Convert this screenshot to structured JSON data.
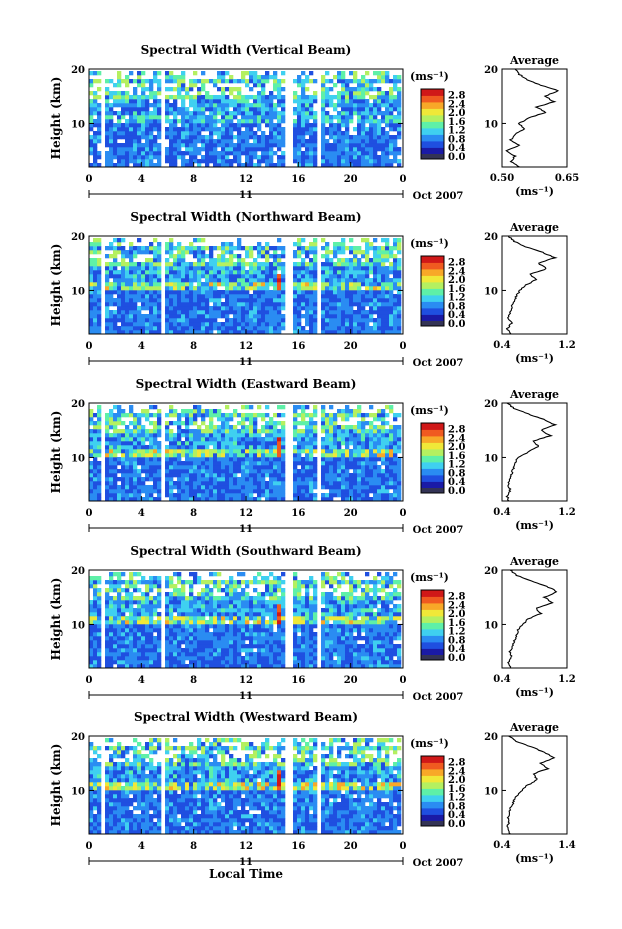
{
  "figure": {
    "xlabel": "Local Time",
    "date_label": "Oct 2007",
    "day_label": "11",
    "colorbar_unit": "(ms⁻¹)",
    "colorbar_ticks": [
      "0.0",
      "0.4",
      "0.8",
      "1.2",
      "1.6",
      "2.0",
      "2.4",
      "2.8"
    ],
    "colors": {
      "cmap": [
        "#1a1aa6",
        "#1f4fe0",
        "#2a8cf2",
        "#3fd0f0",
        "#5ef0a8",
        "#b4f060",
        "#f0e838",
        "#f8a828",
        "#f05a20",
        "#d01818"
      ],
      "line": "#000000"
    }
  },
  "chart_data": [
    {
      "type": "heatmap",
      "title": "Spectral Width (Vertical Beam)",
      "ylabel": "Height (km)",
      "xlim": [
        0,
        24
      ],
      "ylim": [
        2,
        20
      ],
      "xticks": [
        "0",
        "4",
        "8",
        "12",
        "16",
        "20",
        "0"
      ],
      "yticks": [
        "10",
        "20"
      ],
      "zlim": [
        0.0,
        2.8
      ],
      "data_gaps_hours": [
        [
          1.0,
          1.3
        ],
        [
          5.5,
          5.9
        ],
        [
          15.2,
          15.8
        ],
        [
          17.6,
          17.9
        ]
      ],
      "profile": {
        "title": "Average",
        "xlabel": "(ms⁻¹)",
        "xlim": [
          0.5,
          0.65
        ],
        "xticks": [
          "0.50",
          "0.65"
        ],
        "yticks": [
          "10",
          "20"
        ],
        "height_km": [
          2,
          3,
          4,
          5,
          6,
          7,
          8,
          9,
          10,
          11,
          12,
          13,
          14,
          15,
          16,
          17,
          18,
          19,
          20
        ],
        "width_ms": [
          0.54,
          0.52,
          0.53,
          0.51,
          0.54,
          0.52,
          0.53,
          0.55,
          0.54,
          0.56,
          0.6,
          0.58,
          0.62,
          0.6,
          0.63,
          0.59,
          0.56,
          0.54,
          0.53
        ]
      }
    },
    {
      "type": "heatmap",
      "title": "Spectral Width (Northward Beam)",
      "ylabel": "Height (km)",
      "xlim": [
        0,
        24
      ],
      "ylim": [
        2,
        20
      ],
      "xticks": [
        "0",
        "4",
        "8",
        "12",
        "16",
        "20",
        "0"
      ],
      "yticks": [
        "10",
        "20"
      ],
      "zlim": [
        0.0,
        2.8
      ],
      "data_gaps_hours": [
        [
          1.0,
          1.3
        ],
        [
          5.5,
          5.9
        ],
        [
          15.2,
          15.8
        ],
        [
          17.6,
          17.9
        ]
      ],
      "profile": {
        "title": "Average",
        "xlabel": "(ms⁻¹)",
        "xlim": [
          0.4,
          1.2
        ],
        "xticks": [
          "0.4",
          "1.2"
        ],
        "yticks": [
          "10",
          "20"
        ],
        "height_km": [
          2,
          3,
          4,
          5,
          6,
          7,
          8,
          9,
          10,
          11,
          12,
          13,
          14,
          15,
          16,
          17,
          18,
          19,
          20
        ],
        "width_ms": [
          0.5,
          0.46,
          0.52,
          0.48,
          0.5,
          0.52,
          0.55,
          0.58,
          0.62,
          0.7,
          0.82,
          0.75,
          0.95,
          0.85,
          1.05,
          0.9,
          0.7,
          0.55,
          0.48
        ]
      }
    },
    {
      "type": "heatmap",
      "title": "Spectral Width (Eastward Beam)",
      "ylabel": "Height (km)",
      "xlim": [
        0,
        24
      ],
      "ylim": [
        2,
        20
      ],
      "xticks": [
        "0",
        "4",
        "8",
        "12",
        "16",
        "20",
        "0"
      ],
      "yticks": [
        "10",
        "20"
      ],
      "zlim": [
        0.0,
        2.8
      ],
      "data_gaps_hours": [
        [
          1.0,
          1.3
        ],
        [
          5.5,
          5.9
        ],
        [
          15.2,
          15.8
        ],
        [
          17.6,
          17.9
        ]
      ],
      "profile": {
        "title": "Average",
        "xlabel": "(ms⁻¹)",
        "xlim": [
          0.4,
          1.2
        ],
        "xticks": [
          "0.4",
          "1.2"
        ],
        "yticks": [
          "10",
          "20"
        ],
        "height_km": [
          2,
          3,
          4,
          5,
          6,
          7,
          8,
          9,
          10,
          11,
          12,
          13,
          14,
          15,
          16,
          17,
          18,
          19,
          20
        ],
        "width_ms": [
          0.48,
          0.46,
          0.5,
          0.47,
          0.5,
          0.52,
          0.54,
          0.56,
          0.6,
          0.72,
          0.85,
          0.78,
          1.0,
          0.88,
          1.05,
          0.92,
          0.72,
          0.55,
          0.46
        ]
      }
    },
    {
      "type": "heatmap",
      "title": "Spectral Width (Southward Beam)",
      "ylabel": "Height (km)",
      "xlim": [
        0,
        24
      ],
      "ylim": [
        2,
        20
      ],
      "xticks": [
        "0",
        "4",
        "8",
        "12",
        "16",
        "20",
        "0"
      ],
      "yticks": [
        "10",
        "20"
      ],
      "zlim": [
        0.0,
        2.8
      ],
      "data_gaps_hours": [
        [
          1.0,
          1.3
        ],
        [
          5.5,
          5.9
        ],
        [
          15.2,
          15.8
        ],
        [
          17.6,
          17.9
        ]
      ],
      "profile": {
        "title": "Average",
        "xlabel": "(ms⁻¹)",
        "xlim": [
          0.4,
          1.2
        ],
        "xticks": [
          "0.4",
          "1.2"
        ],
        "yticks": [
          "10",
          "20"
        ],
        "height_km": [
          2,
          3,
          4,
          5,
          6,
          7,
          8,
          9,
          10,
          11,
          12,
          13,
          14,
          15,
          16,
          17,
          18,
          19,
          20
        ],
        "width_ms": [
          0.5,
          0.48,
          0.52,
          0.5,
          0.53,
          0.55,
          0.58,
          0.6,
          0.65,
          0.72,
          0.88,
          0.82,
          1.02,
          0.92,
          1.08,
          0.95,
          0.75,
          0.58,
          0.5
        ]
      }
    },
    {
      "type": "heatmap",
      "title": "Spectral Width (Westward Beam)",
      "ylabel": "Height (km)",
      "xlim": [
        0,
        24
      ],
      "ylim": [
        2,
        20
      ],
      "xticks": [
        "0",
        "4",
        "8",
        "12",
        "16",
        "20",
        "0"
      ],
      "yticks": [
        "10",
        "20"
      ],
      "zlim": [
        0.0,
        2.8
      ],
      "data_gaps_hours": [
        [
          1.0,
          1.3
        ],
        [
          5.5,
          5.9
        ],
        [
          15.2,
          15.8
        ],
        [
          17.6,
          17.9
        ]
      ],
      "profile": {
        "title": "Average",
        "xlabel": "(ms⁻¹)",
        "xlim": [
          0.4,
          1.4
        ],
        "xticks": [
          "0.4",
          "1.4"
        ],
        "yticks": [
          "10",
          "20"
        ],
        "height_km": [
          2,
          3,
          4,
          5,
          6,
          7,
          8,
          9,
          10,
          11,
          12,
          13,
          14,
          15,
          16,
          17,
          18,
          19,
          20
        ],
        "width_ms": [
          0.52,
          0.48,
          0.5,
          0.49,
          0.52,
          0.54,
          0.58,
          0.62,
          0.7,
          0.8,
          0.95,
          0.88,
          1.1,
          1.0,
          1.2,
          1.05,
          0.85,
          0.62,
          0.5
        ]
      }
    }
  ]
}
